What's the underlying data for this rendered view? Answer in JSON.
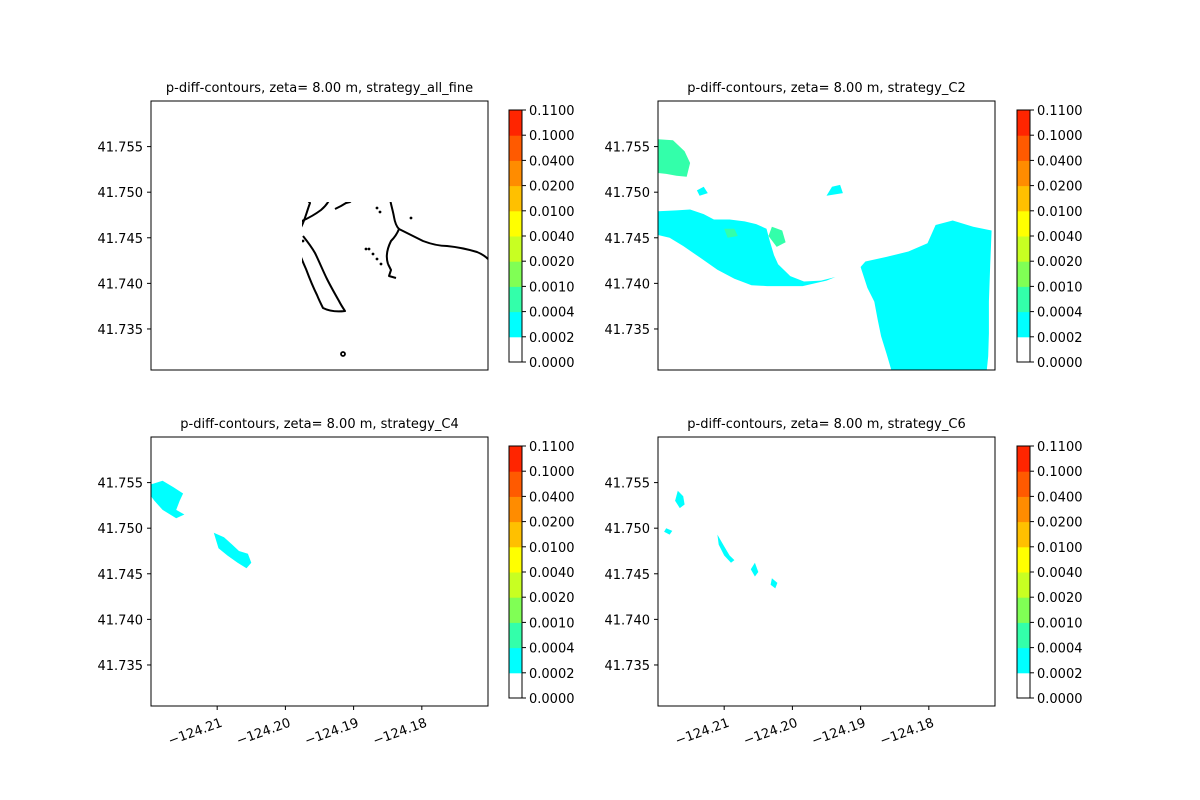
{
  "colors": {
    "coast": "#000000",
    "levels": [
      "#ffffff",
      "#00ffff",
      "#33ffaa",
      "#80ff55",
      "#c8ff22",
      "#ffff00",
      "#ffc000",
      "#ff8c00",
      "#ff5a00",
      "#ff2500",
      "#ff0000"
    ],
    "fill_cyan": "#00ffff",
    "fill_green": "#33ffaa"
  },
  "chart_data": [
    {
      "type": "contour",
      "title": "p-diff-contours, zeta= 8.00 m, strategy_all_fine",
      "xlim": [
        -124.2197,
        -124.1703
      ],
      "ylim": [
        41.7305,
        41.76
      ],
      "yticks": [
        41.735,
        41.74,
        41.745,
        41.75,
        41.755
      ],
      "ytick_labels": [
        "41.735",
        "41.740",
        "41.745",
        "41.750",
        "41.755"
      ],
      "xticks": [],
      "xtick_labels": [],
      "colorbar_levels": [
        "0.0000",
        "0.0002",
        "0.0004",
        "0.0010",
        "0.0020",
        "0.0040",
        "0.0100",
        "0.0200",
        "0.0400",
        "0.1000",
        "0.1100"
      ],
      "regions": []
    },
    {
      "type": "contour",
      "title": "p-diff-contours, zeta= 8.00 m, strategy_C2",
      "xlim": [
        -124.2197,
        -124.1703
      ],
      "ylim": [
        41.7305,
        41.76
      ],
      "yticks": [
        41.735,
        41.74,
        41.745,
        41.75,
        41.755
      ],
      "ytick_labels": [
        "41.735",
        "41.740",
        "41.745",
        "41.750",
        "41.755"
      ],
      "xticks": [],
      "xtick_labels": [],
      "colorbar_levels": [
        "0.0000",
        "0.0002",
        "0.0004",
        "0.0010",
        "0.0020",
        "0.0040",
        "0.0100",
        "0.0200",
        "0.0400",
        "0.1000",
        "0.1100"
      ],
      "regions": [
        {
          "level": "0.0002-0.0004",
          "color": "cyan",
          "points": [
            [
              -124.2197,
              41.7479
            ],
            [
              -124.217,
              41.748
            ],
            [
              -124.215,
              41.7481
            ],
            [
              -124.213,
              41.7476
            ],
            [
              -124.2115,
              41.747
            ],
            [
              -124.2092,
              41.747
            ],
            [
              -124.207,
              41.7468
            ],
            [
              -124.2053,
              41.7465
            ],
            [
              -124.2038,
              41.746
            ],
            [
              -124.2033,
              41.7446
            ],
            [
              -124.2027,
              41.7431
            ],
            [
              -124.2021,
              41.7421
            ],
            [
              -124.2003,
              41.7408
            ],
            [
              -124.1983,
              41.7402
            ],
            [
              -124.1958,
              41.7403
            ],
            [
              -124.1937,
              41.7407
            ],
            [
              -124.195,
              41.7403
            ],
            [
              -124.1985,
              41.7397
            ],
            [
              -124.201,
              41.7397
            ],
            [
              -124.2037,
              41.7397
            ],
            [
              -124.206,
              41.7398
            ],
            [
              -124.2085,
              41.7405
            ],
            [
              -124.211,
              41.7415
            ],
            [
              -124.2135,
              41.7428
            ],
            [
              -124.216,
              41.7441
            ],
            [
              -124.218,
              41.745
            ],
            [
              -124.2197,
              41.7453
            ]
          ]
        },
        {
          "level": "0.0002-0.0004",
          "color": "cyan",
          "points": [
            [
              -124.19,
              41.7418
            ],
            [
              -124.1893,
              41.7424
            ],
            [
              -124.1862,
              41.7429
            ],
            [
              -124.183,
              41.7435
            ],
            [
              -124.1802,
              41.7444
            ],
            [
              -124.179,
              41.7464
            ],
            [
              -124.1765,
              41.7469
            ],
            [
              -124.1735,
              41.7462
            ],
            [
              -124.1708,
              41.7458
            ],
            [
              -124.171,
              41.742
            ],
            [
              -124.1712,
              41.738
            ],
            [
              -124.1712,
              41.7345
            ],
            [
              -124.1713,
              41.732
            ],
            [
              -124.1715,
              41.7305
            ],
            [
              -124.1855,
              41.7305
            ],
            [
              -124.1862,
              41.7323
            ],
            [
              -124.187,
              41.7342
            ],
            [
              -124.1875,
              41.736
            ],
            [
              -124.188,
              41.738
            ],
            [
              -124.189,
              41.7395
            ],
            [
              -124.19,
              41.7418
            ]
          ]
        },
        {
          "level": "0.0002-0.0004",
          "color": "cyan",
          "points": [
            [
              -124.195,
              41.7496
            ],
            [
              -124.1942,
              41.7506
            ],
            [
              -124.193,
              41.7508
            ],
            [
              -124.1926,
              41.7499
            ],
            [
              -124.195,
              41.7496
            ]
          ]
        },
        {
          "level": "0.0002-0.0004",
          "color": "cyan",
          "points": [
            [
              -124.214,
              41.7502
            ],
            [
              -124.213,
              41.7506
            ],
            [
              -124.2124,
              41.7499
            ],
            [
              -124.2136,
              41.7496
            ],
            [
              -124.214,
              41.7502
            ]
          ]
        },
        {
          "level": "0.0004-0.0010",
          "color": "green",
          "points": [
            [
              -124.2197,
              41.7558
            ],
            [
              -124.2175,
              41.7557
            ],
            [
              -124.2158,
              41.7545
            ],
            [
              -124.215,
              41.7532
            ],
            [
              -124.2155,
              41.7517
            ],
            [
              -124.217,
              41.7518
            ],
            [
              -124.2185,
              41.752
            ],
            [
              -124.2197,
              41.7521
            ]
          ]
        },
        {
          "level": "0.0004-0.0010",
          "color": "green",
          "points": [
            [
              -124.21,
              41.746
            ],
            [
              -124.2085,
              41.746
            ],
            [
              -124.208,
              41.7452
            ],
            [
              -124.2095,
              41.745
            ],
            [
              -124.21,
              41.746
            ]
          ]
        },
        {
          "level": "0.0004-0.0010",
          "color": "green",
          "points": [
            [
              -124.203,
              41.7462
            ],
            [
              -124.2015,
              41.7458
            ],
            [
              -124.201,
              41.7445
            ],
            [
              -124.2023,
              41.744
            ],
            [
              -124.2035,
              41.7452
            ],
            [
              -124.203,
              41.7462
            ]
          ]
        }
      ]
    },
    {
      "type": "contour",
      "title": "p-diff-contours, zeta= 8.00 m, strategy_C4",
      "xlim": [
        -124.2197,
        -124.1703
      ],
      "ylim": [
        41.7305,
        41.76
      ],
      "yticks": [
        41.735,
        41.74,
        41.745,
        41.75,
        41.755
      ],
      "ytick_labels": [
        "41.735",
        "41.740",
        "41.745",
        "41.750",
        "41.755"
      ],
      "xticks": [
        -124.21,
        -124.2,
        -124.19,
        -124.18
      ],
      "xtick_labels": [
        "−124.21",
        "−124.20",
        "−124.19",
        "−124.18"
      ],
      "colorbar_levels": [
        "0.0000",
        "0.0002",
        "0.0004",
        "0.0010",
        "0.0020",
        "0.0040",
        "0.0100",
        "0.0200",
        "0.0400",
        "0.1000",
        "0.1100"
      ],
      "regions": [
        {
          "level": "0.0002-0.0004",
          "color": "cyan",
          "points": [
            [
              -124.2197,
              41.7548
            ],
            [
              -124.218,
              41.7552
            ],
            [
              -124.2164,
              41.7545
            ],
            [
              -124.215,
              41.7538
            ],
            [
              -124.2155,
              41.753
            ],
            [
              -124.216,
              41.752
            ],
            [
              -124.2148,
              41.7515
            ],
            [
              -124.216,
              41.7511
            ],
            [
              -124.218,
              41.752
            ],
            [
              -124.2192,
              41.753
            ],
            [
              -124.2197,
              41.7535
            ]
          ]
        },
        {
          "level": "0.0002-0.0004",
          "color": "cyan",
          "points": [
            [
              -124.2105,
              41.7495
            ],
            [
              -124.209,
              41.749
            ],
            [
              -124.2078,
              41.7482
            ],
            [
              -124.2068,
              41.7475
            ],
            [
              -124.2055,
              41.7472
            ],
            [
              -124.205,
              41.7462
            ],
            [
              -124.2057,
              41.7456
            ],
            [
              -124.207,
              41.7462
            ],
            [
              -124.2085,
              41.747
            ],
            [
              -124.2098,
              41.7478
            ],
            [
              -124.2105,
              41.7495
            ]
          ]
        }
      ]
    },
    {
      "type": "contour",
      "title": "p-diff-contours, zeta= 8.00 m, strategy_C6",
      "xlim": [
        -124.2197,
        -124.1703
      ],
      "ylim": [
        41.7305,
        41.76
      ],
      "yticks": [
        41.735,
        41.74,
        41.745,
        41.75,
        41.755
      ],
      "ytick_labels": [
        "41.735",
        "41.740",
        "41.745",
        "41.750",
        "41.755"
      ],
      "xticks": [
        -124.21,
        -124.2,
        -124.19,
        -124.18
      ],
      "xtick_labels": [
        "−124.21",
        "−124.20",
        "−124.19",
        "−124.18"
      ],
      "colorbar_levels": [
        "0.0000",
        "0.0002",
        "0.0004",
        "0.0010",
        "0.0020",
        "0.0040",
        "0.0100",
        "0.0200",
        "0.0400",
        "0.1000",
        "0.1100"
      ],
      "regions": [
        {
          "level": "0.0002-0.0004",
          "color": "cyan",
          "points": [
            [
              -124.2168,
              41.7541
            ],
            [
              -124.216,
              41.7535
            ],
            [
              -124.2158,
              41.7526
            ],
            [
              -124.2165,
              41.7522
            ],
            [
              -124.2172,
              41.753
            ],
            [
              -124.2168,
              41.7541
            ]
          ]
        },
        {
          "level": "0.0002-0.0004",
          "color": "cyan",
          "points": [
            [
              -124.211,
              41.7493
            ],
            [
              -124.21,
              41.748
            ],
            [
              -124.2092,
              41.747
            ],
            [
              -124.2085,
              41.7465
            ],
            [
              -124.209,
              41.7462
            ],
            [
              -124.21,
              41.747
            ],
            [
              -124.2108,
              41.7482
            ],
            [
              -124.211,
              41.7493
            ]
          ]
        },
        {
          "level": "0.0002-0.0004",
          "color": "cyan",
          "points": [
            [
              -124.2055,
              41.7462
            ],
            [
              -124.205,
              41.7452
            ],
            [
              -124.2055,
              41.7447
            ],
            [
              -124.2061,
              41.7455
            ],
            [
              -124.2055,
              41.7462
            ]
          ]
        },
        {
          "level": "0.0002-0.0004",
          "color": "cyan",
          "points": [
            [
              -124.203,
              41.7445
            ],
            [
              -124.2022,
              41.744
            ],
            [
              -124.2025,
              41.7434
            ],
            [
              -124.2032,
              41.7438
            ],
            [
              -124.203,
              41.7445
            ]
          ]
        },
        {
          "level": "0.0002-0.0004",
          "color": "cyan",
          "points": [
            [
              -124.2185,
              41.75
            ],
            [
              -124.2176,
              41.7497
            ],
            [
              -124.218,
              41.7493
            ],
            [
              -124.2188,
              41.7496
            ],
            [
              -124.2185,
              41.75
            ]
          ]
        }
      ]
    }
  ]
}
